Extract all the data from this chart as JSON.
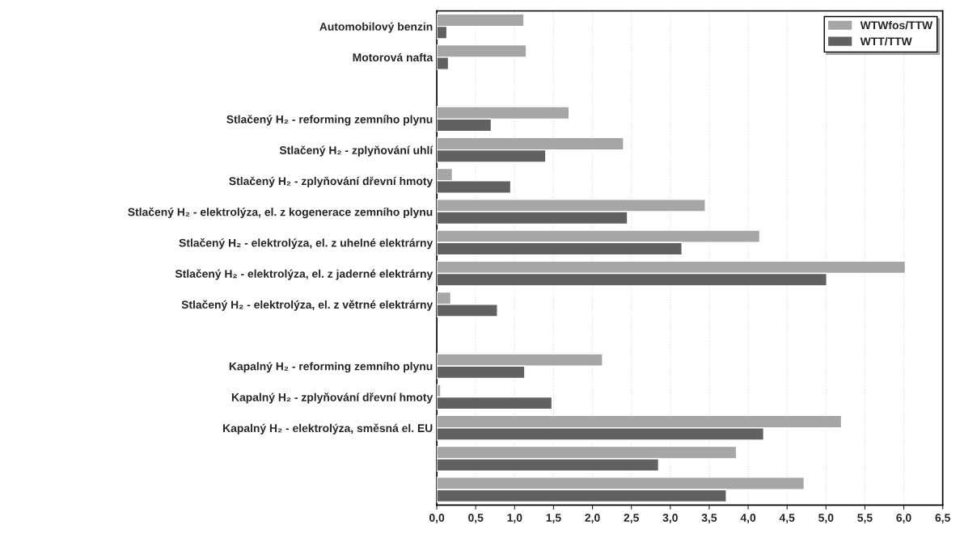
{
  "chart_data": {
    "type": "bar",
    "orientation": "horizontal",
    "categories": [
      "Automobilový benzin",
      "Motorová nafta",
      null,
      "Stlačený H₂ - reforming zemního plynu",
      "Stlačený H₂ - zplyňování uhlí",
      "Stlačený H₂ - zplyňování dřevní hmoty",
      "Stlačený H₂ - elektrolýza, el. z kogenerace zemního plynu",
      "Stlačený H₂ - elektrolýza, el. z uhelné elektrárny",
      "Stlačený H₂ - elektrolýza, el. z jaderné elektrárny",
      "Stlačený H₂ - elektrolýza, el. z větrné elektrárny",
      null,
      "Kapalný H₂ - reforming zemního plynu",
      "Kapalný H₂ - zplyňování dřevní hmoty",
      "Kapalný H₂ - elektrolýza, směsná el. EU",
      null,
      null
    ],
    "series": [
      {
        "name": "WTWfos/TTW",
        "color": "#a6a6a6",
        "values": [
          1.12,
          1.15,
          null,
          1.7,
          2.4,
          0.2,
          3.45,
          4.15,
          6.02,
          0.18,
          null,
          2.13,
          0.05,
          5.2,
          3.85,
          4.72
        ]
      },
      {
        "name": "WTT/TTW",
        "color": "#616161",
        "values": [
          0.13,
          0.15,
          null,
          0.7,
          1.4,
          0.95,
          2.45,
          3.15,
          5.01,
          0.78,
          null,
          1.13,
          1.48,
          4.2,
          2.85,
          3.72
        ]
      }
    ],
    "xlim": [
      0,
      6.5
    ],
    "xticks": [
      {
        "value": 0,
        "label": "0,0"
      },
      {
        "value": 0.5,
        "label": "0,5"
      },
      {
        "value": 1,
        "label": "1,0"
      },
      {
        "value": 1.5,
        "label": "1,5"
      },
      {
        "value": 2,
        "label": "2,0"
      },
      {
        "value": 2.5,
        "label": "2,5"
      },
      {
        "value": 3,
        "label": "3,0"
      },
      {
        "value": 3.5,
        "label": "3,5"
      },
      {
        "value": 4,
        "label": "4,0"
      },
      {
        "value": 4.5,
        "label": "4,5"
      },
      {
        "value": 5,
        "label": "5,0"
      },
      {
        "value": 5.5,
        "label": "5,5"
      },
      {
        "value": 6,
        "label": "6,0"
      },
      {
        "value": 6.5,
        "label": "6,5"
      }
    ],
    "grid": "x",
    "legend": "top right"
  }
}
